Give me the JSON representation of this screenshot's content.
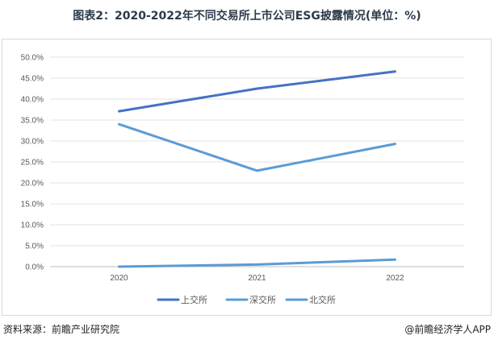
{
  "title": "图表2：2020-2022年不同交易所上市公司ESG披露情况(单位：%)",
  "footer": {
    "source": "资料来源：前瞻产业研究院",
    "brand": "@前瞻经济学人APP"
  },
  "colors": {
    "sse": "#4472c4",
    "szse": "#5b9bd5",
    "bse": "#5a9bd4",
    "grid": "#e3e3e3",
    "axis": "#bfbfbf"
  },
  "chart_data": {
    "type": "line",
    "categories": [
      "2020",
      "2021",
      "2022"
    ],
    "series": [
      {
        "name": "上交所",
        "values": [
          37.1,
          42.5,
          46.6
        ]
      },
      {
        "name": "深交所",
        "values": [
          34.0,
          22.9,
          29.3
        ]
      },
      {
        "name": "北交所",
        "values": [
          0.0,
          0.5,
          1.7
        ]
      }
    ],
    "ylim": [
      0,
      50
    ],
    "yticks": [
      "0.0%",
      "5.0%",
      "10.0%",
      "15.0%",
      "20.0%",
      "25.0%",
      "30.0%",
      "35.0%",
      "40.0%",
      "45.0%",
      "50.0%"
    ],
    "grid": true,
    "legend_position": "bottom"
  }
}
